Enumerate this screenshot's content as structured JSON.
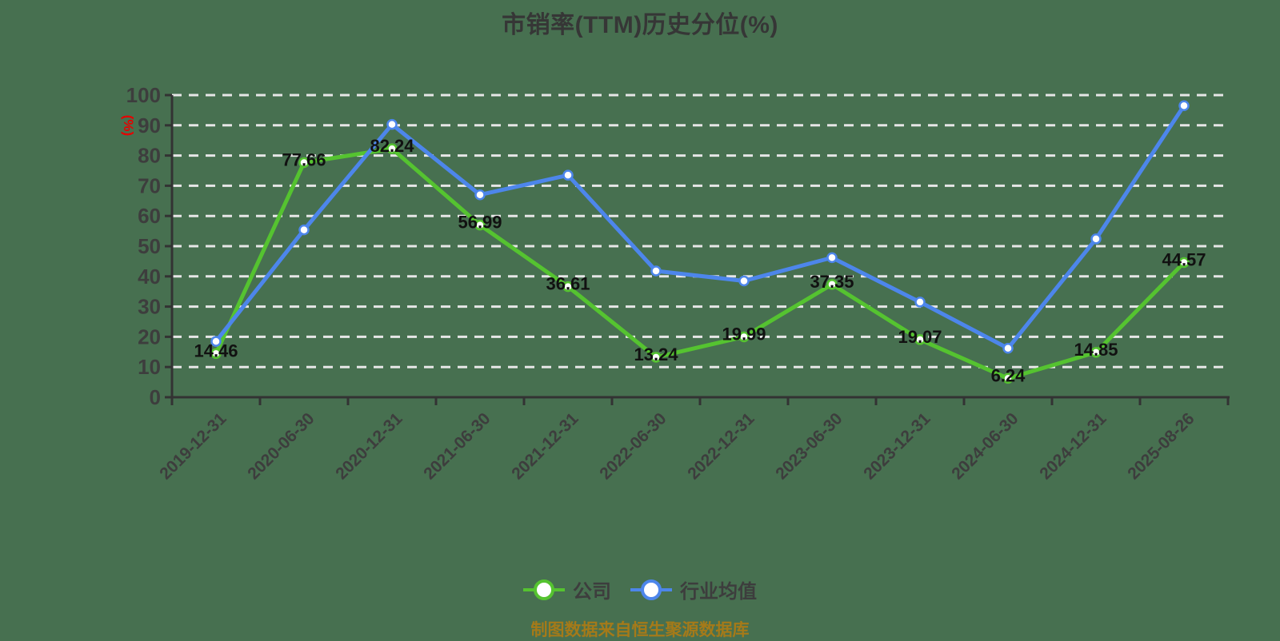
{
  "title": "市销率(TTM)历史分位(%)",
  "y_axis_name": "(%)",
  "footer": "制图数据来自恒生聚源数据库",
  "legend": {
    "items": [
      {
        "label": "公司",
        "color": "#55c330"
      },
      {
        "label": "行业均值",
        "color": "#4d86eb"
      }
    ]
  },
  "colors": {
    "background": "#477050",
    "grid_line": "#e6e6e6",
    "axis_line": "#333333",
    "tick_label": "#3d3d3d",
    "data_label": "#111111",
    "title_text": "#363636",
    "y_axis_name": "#e60000",
    "footer_text": "#a57a19",
    "marker_fill": "#ffffff",
    "series_company": "#55c330",
    "series_industry": "#4d86eb"
  },
  "chart_data": {
    "type": "line",
    "title": "市销率(TTM)历史分位(%)",
    "ylabel": "(%)",
    "ylim": [
      0,
      100
    ],
    "y_ticks": [
      0,
      10,
      20,
      30,
      40,
      50,
      60,
      70,
      80,
      90,
      100
    ],
    "grid": "horizontal-dashed-white",
    "legend_position": "bottom",
    "categories": [
      "2019-12-31",
      "2020-06-30",
      "2020-12-31",
      "2021-06-30",
      "2021-12-31",
      "2022-06-30",
      "2022-12-31",
      "2023-06-30",
      "2023-12-31",
      "2024-06-30",
      "2024-12-31",
      "2025-08-26"
    ],
    "series": [
      {
        "name": "公司",
        "color": "#55c330",
        "labeled": true,
        "values": [
          14.46,
          77.66,
          82.24,
          56.99,
          36.61,
          13.24,
          19.99,
          37.35,
          19.07,
          6.24,
          14.85,
          44.57
        ]
      },
      {
        "name": "行业均值",
        "color": "#4d86eb",
        "labeled": false,
        "values": [
          18.5,
          55.4,
          90.3,
          67.0,
          73.5,
          41.8,
          38.5,
          46.2,
          31.5,
          16.2,
          52.4,
          96.5
        ]
      }
    ]
  }
}
